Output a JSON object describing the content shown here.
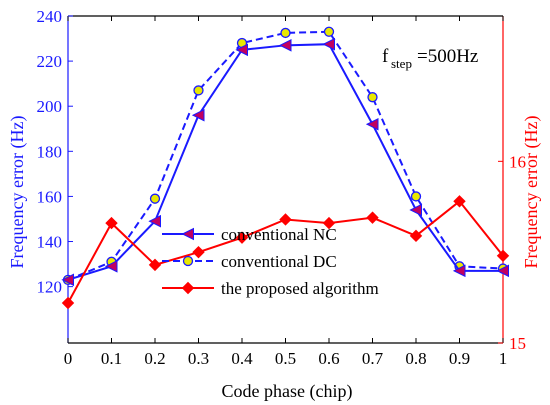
{
  "chart_data": {
    "type": "line",
    "xlabel": "Code phase (chip)",
    "ylabel_left": "Frequency error (Hz)",
    "ylabel_right": "Frequency error (Hz)",
    "annotation": {
      "main": "f",
      "sub": "step",
      "rest": "=500Hz"
    },
    "x": [
      0,
      0.1,
      0.2,
      0.3,
      0.4,
      0.5,
      0.6,
      0.7,
      0.8,
      0.9,
      1
    ],
    "xlim": [
      0,
      1
    ],
    "x_ticks": [
      0,
      0.1,
      0.2,
      0.3,
      0.4,
      0.5,
      0.6,
      0.7,
      0.8,
      0.9,
      1
    ],
    "x_tick_labels": [
      "0",
      "0.1",
      "0.2",
      "0.3",
      "0.4",
      "0.5",
      "0.6",
      "0.7",
      "0.8",
      "0.9",
      "1"
    ],
    "ylim_left": [
      95,
      240
    ],
    "y_ticks_left": [
      120,
      140,
      160,
      180,
      200,
      220,
      240
    ],
    "ylim_right": [
      15,
      16.8
    ],
    "y_ticks_right": [
      15,
      16
    ],
    "grid": false,
    "legend_placement": "center-left",
    "colors": {
      "left_axis": "#1a1aff",
      "right_axis": "#ff0000",
      "axes": "#000000"
    },
    "series": [
      {
        "name": "conventional NC",
        "axis": "left",
        "color": "#1a1aff",
        "line_style": "solid",
        "marker": "left-triangle",
        "marker_fill": "#c00060",
        "values": [
          123,
          129,
          149,
          196,
          225,
          227,
          227.5,
          192,
          154,
          127,
          127
        ]
      },
      {
        "name": "conventional DC",
        "axis": "left",
        "color": "#1a1aff",
        "line_style": "dashed",
        "marker": "circle",
        "marker_fill": "#e8e800",
        "values": [
          123,
          131,
          159,
          207,
          228,
          232.5,
          233,
          204,
          160,
          129,
          128
        ]
      },
      {
        "name": "the proposed algorithm",
        "axis": "right",
        "color": "#ff0000",
        "line_style": "solid",
        "marker": "diamond",
        "marker_fill": "#ff0000",
        "values": [
          15.22,
          15.66,
          15.43,
          15.5,
          15.58,
          15.68,
          15.66,
          15.69,
          15.59,
          15.78,
          15.48
        ]
      }
    ]
  }
}
